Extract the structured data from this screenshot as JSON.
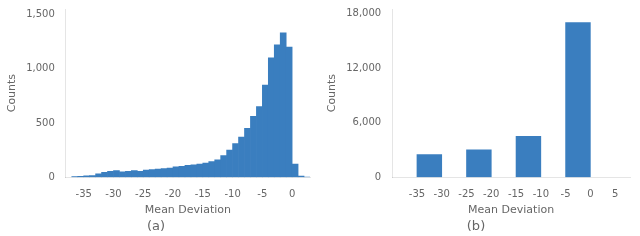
{
  "chart_data": [
    {
      "type": "histogram",
      "title": "(a)",
      "x_label": "Mean Deviation",
      "y_label": "Counts",
      "color": "#3a7ebf",
      "bins": [
        -37,
        -36,
        -35,
        -34,
        -33,
        -32,
        -31,
        -30,
        -29,
        -28,
        -27,
        -26,
        -25,
        -24,
        -23,
        -22,
        -21,
        -20,
        -19,
        -18,
        -17,
        -16,
        -15,
        -14,
        -13,
        -12,
        -11,
        -10,
        -9,
        -8,
        -7,
        -6,
        -5,
        -4,
        -3,
        -2,
        -1,
        0,
        1,
        2,
        3
      ],
      "values": [
        5,
        8,
        12,
        15,
        30,
        45,
        55,
        60,
        50,
        55,
        60,
        55,
        65,
        70,
        75,
        80,
        85,
        95,
        100,
        110,
        115,
        120,
        130,
        145,
        160,
        200,
        250,
        310,
        370,
        450,
        560,
        650,
        850,
        1100,
        1220,
        1330,
        1200,
        120,
        10,
        2
      ],
      "xlim": [
        -38,
        3
      ],
      "ylim": [
        0,
        1550
      ],
      "xticks": [
        -35,
        -30,
        -25,
        -20,
        -15,
        -10,
        -5,
        0
      ],
      "yticks": [
        0,
        500,
        1000,
        1500
      ],
      "grid": false
    },
    {
      "type": "histogram",
      "title": "(b)",
      "x_label": "Mean Deviation",
      "y_label": "Counts",
      "color": "#3a7ebf",
      "bins": [
        -37.5,
        -27.5,
        -17.5,
        -7.5,
        2.5
      ],
      "values": [
        2500,
        3000,
        4500,
        17000
      ],
      "xlim": [
        -40,
        8
      ],
      "ylim": [
        0,
        18500
      ],
      "xticks": [
        -35,
        -30,
        -25,
        -20,
        -15,
        -10,
        -5,
        0,
        5
      ],
      "yticks": [
        0,
        6000,
        12000,
        18000
      ],
      "grid": false
    }
  ]
}
